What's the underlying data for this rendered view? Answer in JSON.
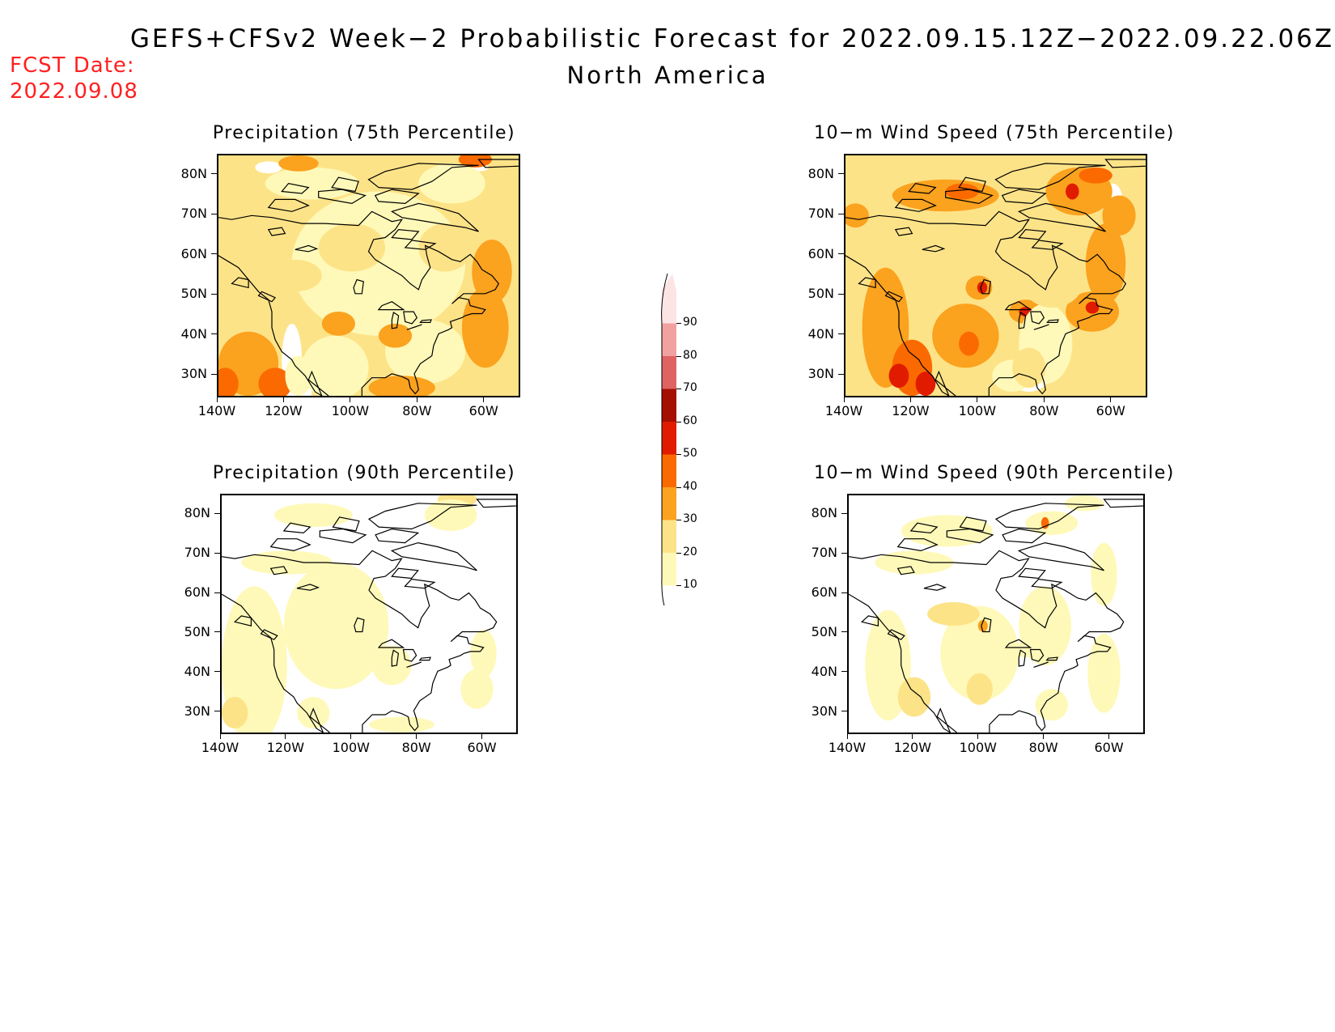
{
  "header": {
    "title_line1": "GEFS+CFSv2 Week−2 Probabilistic Forecast for 2022.09.15.12Z−2022.09.22.06Z",
    "title_line2": "North America",
    "fcst_label": "FCST Date:",
    "fcst_date": "2022.09.08"
  },
  "panels": [
    {
      "title": "Precipitation (75th Percentile)",
      "variant": "precip75"
    },
    {
      "title": "10−m Wind Speed (75th Percentile)",
      "variant": "wind75"
    },
    {
      "title": "Precipitation (90th Percentile)",
      "variant": "precip90"
    },
    {
      "title": "10−m Wind Speed (90th Percentile)",
      "variant": "wind90"
    }
  ],
  "axes": {
    "lat_labels": [
      "80N",
      "70N",
      "60N",
      "50N",
      "40N",
      "30N"
    ],
    "lon_labels": [
      "140W",
      "120W",
      "100W",
      "80W",
      "60W"
    ]
  },
  "colorbar": {
    "levels": [
      "10",
      "20",
      "30",
      "40",
      "50",
      "60",
      "70",
      "80",
      "90"
    ],
    "colors": [
      "#fff9b9",
      "#fde388",
      "#fba21e",
      "#fb6a00",
      "#e11b00",
      "#a50f00",
      "#df6363",
      "#f2a1a1",
      "#fde4e4"
    ]
  }
}
